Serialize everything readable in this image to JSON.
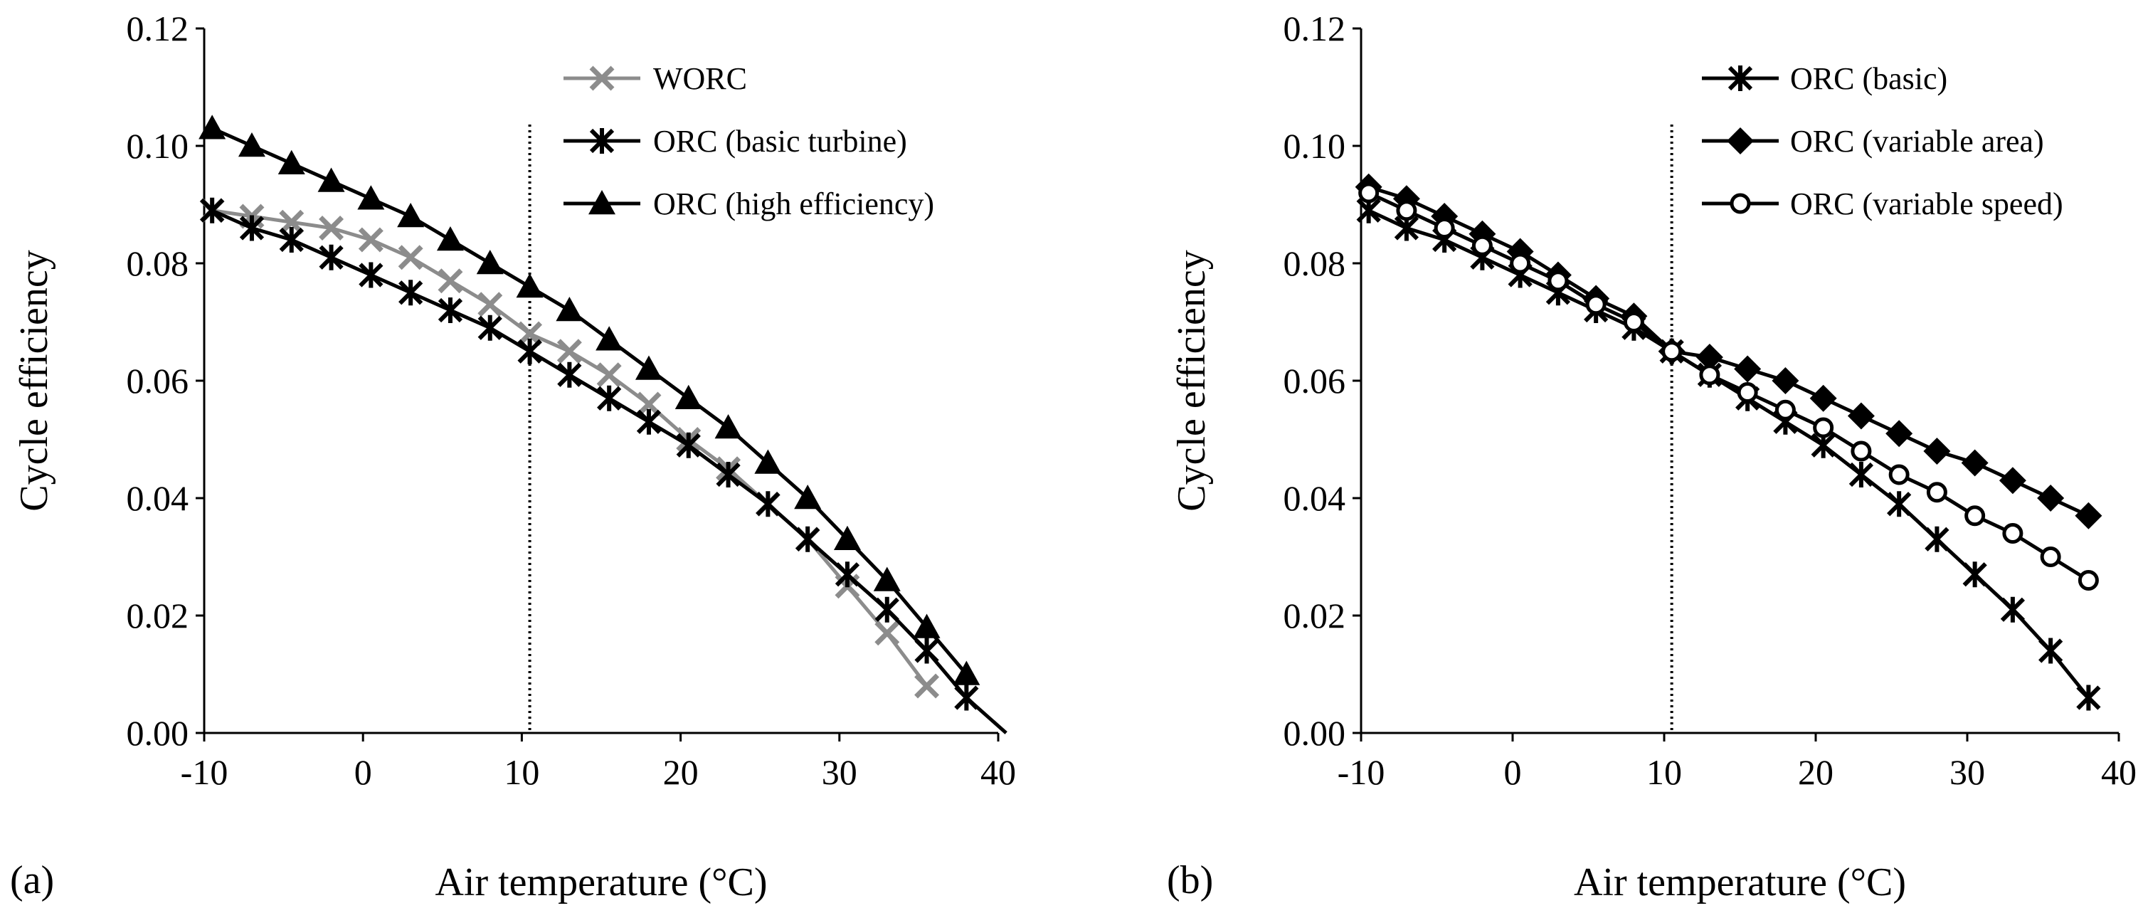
{
  "chart_data": [
    {
      "type": "line",
      "panel_label": "(a)",
      "title": "",
      "xlabel": "Air temperature (°C)",
      "ylabel": "Cycle efficiency",
      "xlim": [
        -10,
        40
      ],
      "ylim": [
        0,
        0.12
      ],
      "xticks": [
        "-10",
        "0",
        "10",
        "20",
        "30",
        "40"
      ],
      "yticks": [
        "0.00",
        "0.02",
        "0.04",
        "0.06",
        "0.08",
        "0.10",
        "0.12"
      ],
      "reference_line_x": 10.5,
      "grid": false,
      "legend_position": "top-right",
      "series": [
        {
          "name": "WORC",
          "color": "#8c8c8c",
          "marker": "x",
          "x": [
            -9.5,
            -7,
            -4.5,
            -2,
            0.5,
            3,
            5.5,
            8,
            10.5,
            13,
            15.5,
            18,
            20.5,
            23,
            25.5,
            28,
            30.5,
            33,
            35.5
          ],
          "y": [
            0.089,
            0.088,
            0.087,
            0.086,
            0.084,
            0.081,
            0.077,
            0.073,
            0.068,
            0.065,
            0.061,
            0.056,
            0.05,
            0.045,
            0.039,
            0.033,
            0.025,
            0.017,
            0.008
          ]
        },
        {
          "name": "ORC (basic turbine)",
          "color": "#000000",
          "marker": "asterisk",
          "x": [
            -9.5,
            -7,
            -4.5,
            -2,
            0.5,
            3,
            5.5,
            8,
            10.5,
            13,
            15.5,
            18,
            20.5,
            23,
            25.5,
            28,
            30.5,
            33,
            35.5,
            38
          ],
          "y": [
            0.089,
            0.086,
            0.084,
            0.081,
            0.078,
            0.075,
            0.072,
            0.069,
            0.065,
            0.061,
            0.057,
            0.053,
            0.049,
            0.044,
            0.039,
            0.033,
            0.027,
            0.021,
            0.014,
            0.006
          ],
          "end_x": 40.5,
          "end_y": 0.0
        },
        {
          "name": "ORC (high efficiency)",
          "color": "#000000",
          "marker": "triangle",
          "x": [
            -9.5,
            -7,
            -4.5,
            -2,
            0.5,
            3,
            5.5,
            8,
            10.5,
            13,
            15.5,
            18,
            20.5,
            23,
            25.5,
            28,
            30.5,
            33,
            35.5,
            38
          ],
          "y": [
            0.103,
            0.1,
            0.097,
            0.094,
            0.091,
            0.088,
            0.084,
            0.08,
            0.076,
            0.072,
            0.067,
            0.062,
            0.057,
            0.052,
            0.046,
            0.04,
            0.033,
            0.026,
            0.018,
            0.01
          ]
        }
      ]
    },
    {
      "type": "line",
      "panel_label": "(b)",
      "title": "",
      "xlabel": "Air temperature (°C)",
      "ylabel": "Cycle efficiency",
      "xlim": [
        -10,
        40
      ],
      "ylim": [
        0,
        0.12
      ],
      "xticks": [
        "-10",
        "0",
        "10",
        "20",
        "30",
        "40"
      ],
      "yticks": [
        "0.00",
        "0.02",
        "0.04",
        "0.06",
        "0.08",
        "0.10",
        "0.12"
      ],
      "reference_line_x": 10.5,
      "grid": false,
      "legend_position": "top-right",
      "series": [
        {
          "name": "ORC (basic)",
          "color": "#000000",
          "marker": "asterisk",
          "x": [
            -9.5,
            -7,
            -4.5,
            -2,
            0.5,
            3,
            5.5,
            8,
            10.5,
            13,
            15.5,
            18,
            20.5,
            23,
            25.5,
            28,
            30.5,
            33,
            35.5,
            38
          ],
          "y": [
            0.089,
            0.086,
            0.084,
            0.081,
            0.078,
            0.075,
            0.072,
            0.069,
            0.065,
            0.061,
            0.057,
            0.053,
            0.049,
            0.044,
            0.039,
            0.033,
            0.027,
            0.021,
            0.014,
            0.006
          ]
        },
        {
          "name": "ORC (variable area)",
          "color": "#000000",
          "marker": "diamond",
          "x": [
            -9.5,
            -7,
            -4.5,
            -2,
            0.5,
            3,
            5.5,
            8,
            10.5,
            13,
            15.5,
            18,
            20.5,
            23,
            25.5,
            28,
            30.5,
            33,
            35.5,
            38
          ],
          "y": [
            0.093,
            0.091,
            0.088,
            0.085,
            0.082,
            0.078,
            0.074,
            0.071,
            0.065,
            0.064,
            0.062,
            0.06,
            0.057,
            0.054,
            0.051,
            0.048,
            0.046,
            0.043,
            0.04,
            0.037
          ]
        },
        {
          "name": "ORC (variable speed)",
          "color": "#000000",
          "marker": "circle-open",
          "x": [
            -9.5,
            -7,
            -4.5,
            -2,
            0.5,
            3,
            5.5,
            8,
            10.5,
            13,
            15.5,
            18,
            20.5,
            23,
            25.5,
            28,
            30.5,
            33,
            35.5,
            38
          ],
          "y": [
            0.092,
            0.089,
            0.086,
            0.083,
            0.08,
            0.077,
            0.073,
            0.07,
            0.065,
            0.061,
            0.058,
            0.055,
            0.052,
            0.048,
            0.044,
            0.041,
            0.037,
            0.034,
            0.03,
            0.026
          ]
        }
      ]
    }
  ]
}
